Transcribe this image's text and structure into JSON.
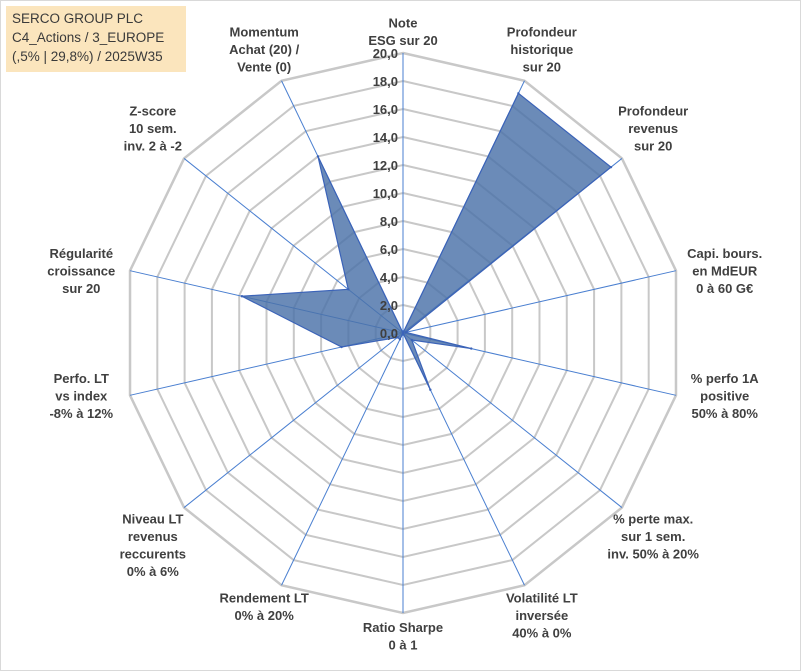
{
  "title_box": {
    "line1": "SERCO GROUP PLC",
    "line2": "C4_Actions / 3_EUROPE",
    "line3": "(,5% | 29,8%) / 2025W35"
  },
  "chart_data": {
    "type": "radar",
    "rmin": 0,
    "rmax": 20,
    "tick_step": 2,
    "tick_labels": [
      "0,0",
      "2,0",
      "4,0",
      "6,0",
      "8,0",
      "10,0",
      "12,0",
      "14,0",
      "16,0",
      "18,0",
      "20,0"
    ],
    "grid": true,
    "colors": {
      "fill": "#4a72a8",
      "stroke": "#3b63b8",
      "grid": "#c8c8c8",
      "spoke": "#4a7fd0"
    },
    "axes": [
      {
        "label": [
          "Note",
          "ESG sur 20"
        ],
        "value": 0.0
      },
      {
        "label": [
          "Profondeur",
          "historique",
          "sur 20"
        ],
        "value": 19.0
      },
      {
        "label": [
          "Profondeur",
          "revenus",
          "sur 20"
        ],
        "value": 19.0
      },
      {
        "label": [
          "Capi. bours.",
          "en MdEUR",
          "0 à 60 G€"
        ],
        "value": 0.2
      },
      {
        "label": [
          "% perfo 1A",
          "positive",
          "50% à 80%"
        ],
        "value": 5.0
      },
      {
        "label": [
          "% perte max.",
          "sur 1 sem.",
          "inv. 50% à 20%"
        ],
        "value": 0.8
      },
      {
        "label": [
          "Volatilité LT",
          "inversée",
          "40% à 0%"
        ],
        "value": 4.5
      },
      {
        "label": [
          "Ratio Sharpe",
          "0 à 1"
        ],
        "value": 0.0
      },
      {
        "label": [
          "Rendement LT",
          "0% à 20%"
        ],
        "value": 0.5
      },
      {
        "label": [
          "Niveau LT",
          "revenus",
          "reccurents",
          "0% à 6%"
        ],
        "value": 0.5
      },
      {
        "label": [
          "Perfo. LT",
          "vs index",
          "-8% à 12%"
        ],
        "value": 4.5
      },
      {
        "label": [
          "Régularité",
          "croissance",
          "sur 20"
        ],
        "value": 11.8
      },
      {
        "label": [
          "Z-score",
          "10 sem.",
          "inv. 2 à -2"
        ],
        "value": 5.0
      },
      {
        "label": [
          "Momentum",
          "Achat (20) /",
          "Vente (0)"
        ],
        "value": 14.0
      }
    ]
  }
}
